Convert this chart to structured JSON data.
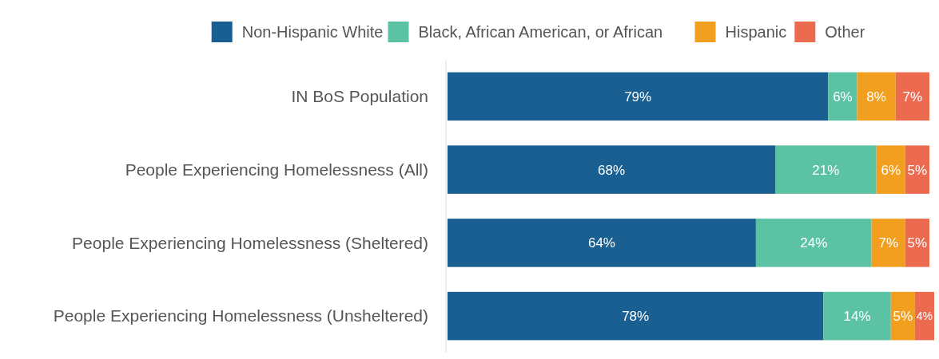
{
  "chart_data": {
    "type": "bar",
    "orientation": "horizontal",
    "stacked": true,
    "legend": "top",
    "categories": [
      "IN BoS Population",
      "People Experiencing Homelessness (All)",
      "People Experiencing Homelessness (Sheltered)",
      "People Experiencing Homelessness (Unsheltered)"
    ],
    "series": [
      {
        "name": "Non-Hispanic White",
        "color": "#1a5f91",
        "values": [
          79,
          68,
          64,
          78
        ],
        "value_labels": [
          "79%",
          "68%",
          "64%",
          "78%"
        ]
      },
      {
        "name": "Black, African American, or African",
        "color": "#5bc2a3",
        "values": [
          6,
          21,
          24,
          14
        ],
        "value_labels": [
          "6%",
          "21%",
          "24%",
          "14%"
        ]
      },
      {
        "name": "Hispanic",
        "color": "#f29f1f",
        "values": [
          8,
          6,
          7,
          5
        ],
        "value_labels": [
          "8%",
          "6%",
          "7%",
          "5%"
        ]
      },
      {
        "name": "Other",
        "color": "#ec6b50",
        "values": [
          7,
          5,
          5,
          4
        ],
        "value_labels": [
          "7%",
          "5%",
          "5%",
          "4%"
        ]
      }
    ]
  }
}
